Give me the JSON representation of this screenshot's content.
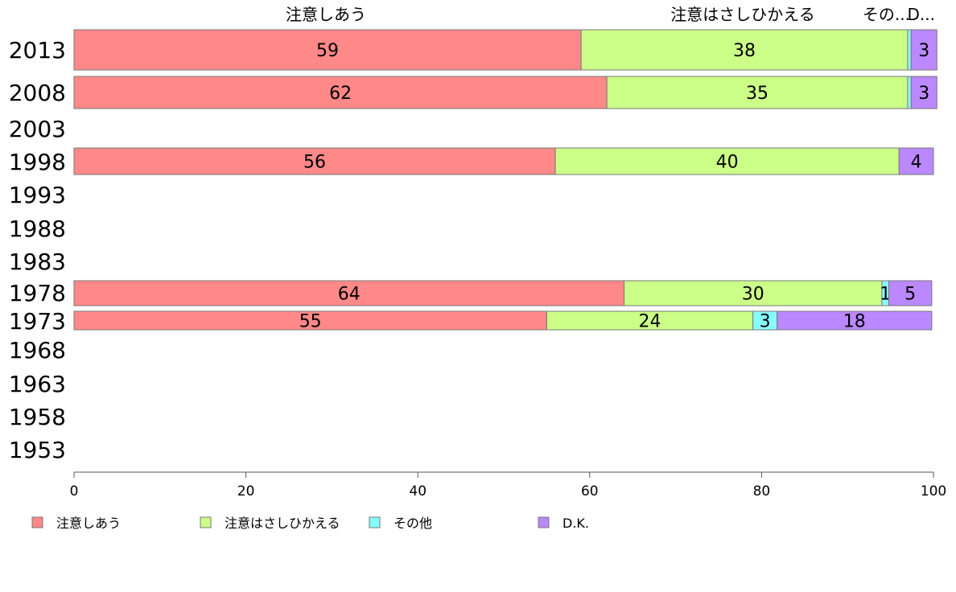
{
  "chart_data": {
    "type": "bar",
    "orientation": "horizontal",
    "stacked": true,
    "categories": [
      "2013",
      "2008",
      "2003",
      "1998",
      "1993",
      "1988",
      "1983",
      "1978",
      "1973",
      "1968",
      "1963",
      "1958",
      "1953"
    ],
    "series": [
      {
        "name": "注意しあう",
        "color": "#ff8888",
        "values": [
          59,
          62,
          null,
          56,
          null,
          null,
          null,
          64,
          55,
          null,
          null,
          null,
          null
        ]
      },
      {
        "name": "注意はさしひかえる",
        "color": "#ccff88",
        "values": [
          38,
          35,
          null,
          40,
          null,
          null,
          null,
          30,
          24,
          null,
          null,
          null,
          null
        ]
      },
      {
        "name": "その他",
        "color": "#88ffff",
        "values": [
          0.4,
          0.4,
          null,
          0,
          null,
          null,
          null,
          0.8,
          2.8,
          null,
          null,
          null,
          null
        ]
      },
      {
        "name": "D.K.",
        "color": "#bb88ff",
        "values": [
          3,
          3,
          null,
          4,
          null,
          null,
          null,
          5,
          18,
          null,
          null,
          null,
          null
        ]
      }
    ],
    "data_labels": [
      [
        "59",
        "62",
        "",
        "56",
        "",
        "",
        "",
        "64",
        "55",
        "",
        "",
        "",
        ""
      ],
      [
        "38",
        "35",
        "",
        "40",
        "",
        "",
        "",
        "30",
        "24",
        "",
        "",
        "",
        ""
      ],
      [
        "",
        "",
        "",
        "",
        "",
        "",
        "",
        "1",
        "3",
        "",
        "",
        "",
        ""
      ],
      [
        "3",
        "3",
        "",
        "4",
        "",
        "",
        "",
        "5",
        "18",
        "",
        "",
        "",
        ""
      ]
    ],
    "top_labels": [
      "注意しあう",
      "注意はさしひかえる",
      "その...",
      "D..."
    ],
    "xlim": [
      0,
      100
    ],
    "xticks": [
      0,
      20,
      40,
      60,
      80,
      100
    ],
    "legend_position": "bottom",
    "grid": false
  }
}
